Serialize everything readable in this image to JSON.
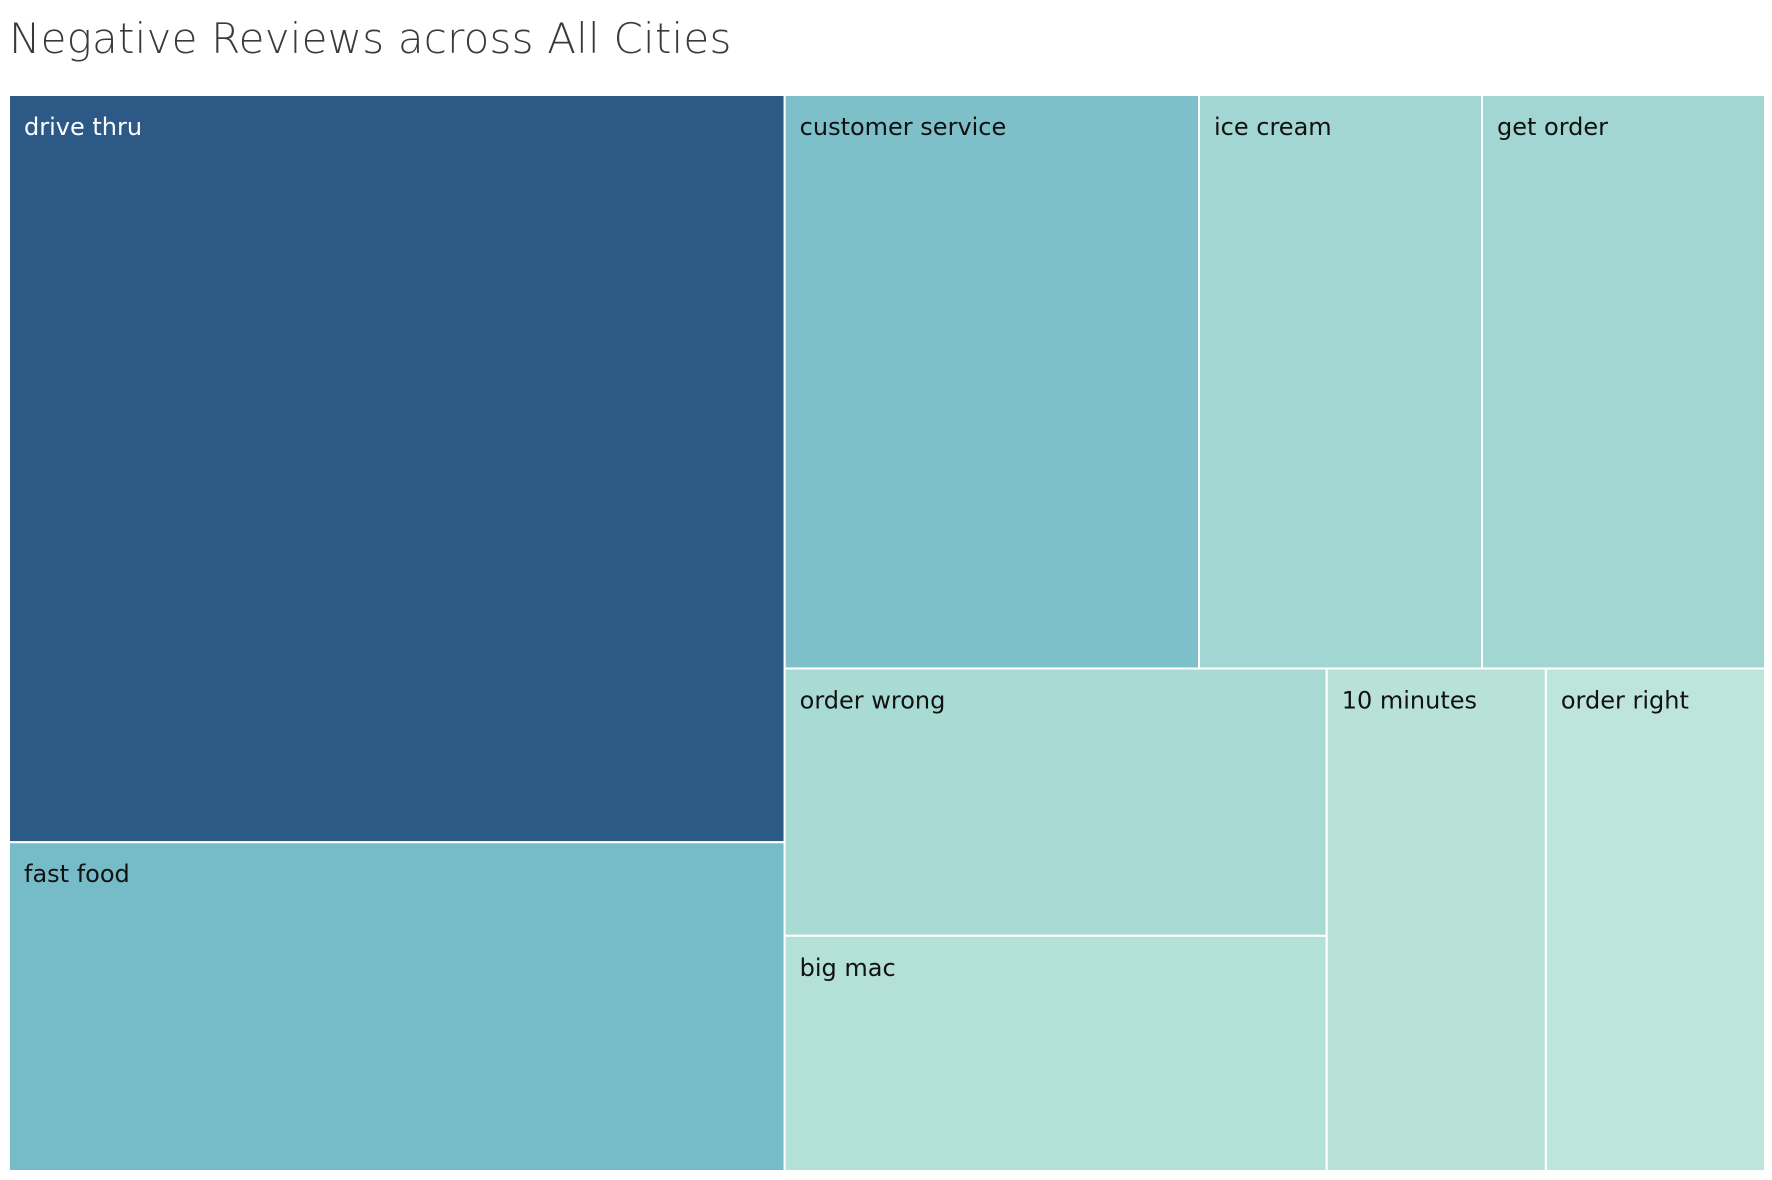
{
  "chart_data": {
    "type": "treemap",
    "title": "Negative Reviews across All Cities",
    "items": [
      {
        "label": "drive thru",
        "value": 100,
        "color": "#2d5986",
        "text_color": "#ffffff"
      },
      {
        "label": "fast food",
        "value": 44,
        "color": "#76bcc8",
        "text_color": "#111111"
      },
      {
        "label": "customer service",
        "value": 41,
        "color": "#7dc0c9",
        "text_color": "#111111"
      },
      {
        "label": "ice cream",
        "value": 28,
        "color": "#a2d6d2",
        "text_color": "#111111"
      },
      {
        "label": "get order",
        "value": 28,
        "color": "#a2d6d2",
        "text_color": "#111111"
      },
      {
        "label": "order wrong",
        "value": 25,
        "color": "#a9dbd5",
        "text_color": "#111111"
      },
      {
        "label": "big mac",
        "value": 22,
        "color": "#b3e0d7",
        "text_color": "#111111"
      },
      {
        "label": "10 minutes",
        "value": 19,
        "color": "#b8e2d8",
        "text_color": "#111111"
      },
      {
        "label": "order right",
        "value": 19,
        "color": "#bde5da",
        "text_color": "#111111"
      }
    ]
  }
}
